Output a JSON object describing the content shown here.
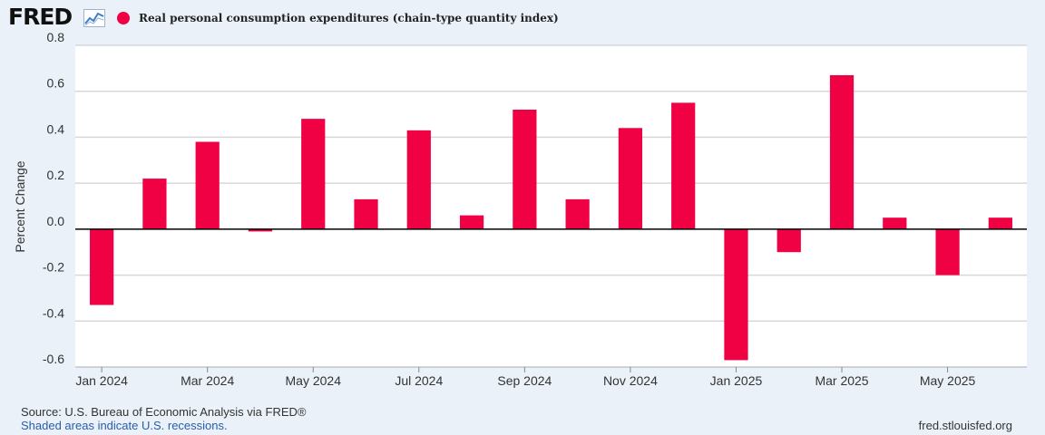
{
  "header": {
    "logo_text": "FRED",
    "logo_icon": "fred-chart-line-icon",
    "series_color": "#f00143"
  },
  "chart_data": {
    "type": "bar",
    "title": "Real personal consumption expenditures (chain-type quantity index)",
    "ylabel": "Percent Change",
    "xlabel": "",
    "ylim": [
      -0.6,
      0.8
    ],
    "yticks": [
      0.8,
      0.6,
      0.4,
      0.2,
      0.0,
      -0.2,
      -0.4,
      -0.6
    ],
    "ytick_labels": [
      "0.8",
      "0.6",
      "0.4",
      "0.2",
      "0.0",
      "-0.2",
      "-0.4",
      "-0.6"
    ],
    "categories": [
      "Jan 2024",
      "Feb 2024",
      "Mar 2024",
      "Apr 2024",
      "May 2024",
      "Jun 2024",
      "Jul 2024",
      "Aug 2024",
      "Sep 2024",
      "Oct 2024",
      "Nov 2024",
      "Dec 2024",
      "Jan 2025",
      "Feb 2025",
      "Mar 2025",
      "Apr 2025",
      "May 2025",
      "Jun 2025"
    ],
    "xtick_labels": [
      "Jan 2024",
      "Mar 2024",
      "May 2024",
      "Jul 2024",
      "Sep 2024",
      "Nov 2024",
      "Jan 2025",
      "Mar 2025",
      "May 2025"
    ],
    "xtick_indices": [
      0,
      2,
      4,
      6,
      8,
      10,
      12,
      14,
      16
    ],
    "series": [
      {
        "name": "Real personal consumption expenditures (chain-type quantity index)",
        "color": "#f00143",
        "values": [
          -0.33,
          0.22,
          0.38,
          -0.01,
          0.48,
          0.13,
          0.43,
          0.06,
          0.52,
          0.13,
          0.44,
          0.55,
          -0.57,
          -0.1,
          0.67,
          0.05,
          -0.2,
          0.05
        ]
      }
    ],
    "grid": true,
    "legend": "top-left"
  },
  "footer": {
    "source": "Source: U.S. Bureau of Economic Analysis via FRED®",
    "recessions": "Shaded areas indicate U.S. recessions.",
    "site": "fred.stlouisfed.org"
  }
}
